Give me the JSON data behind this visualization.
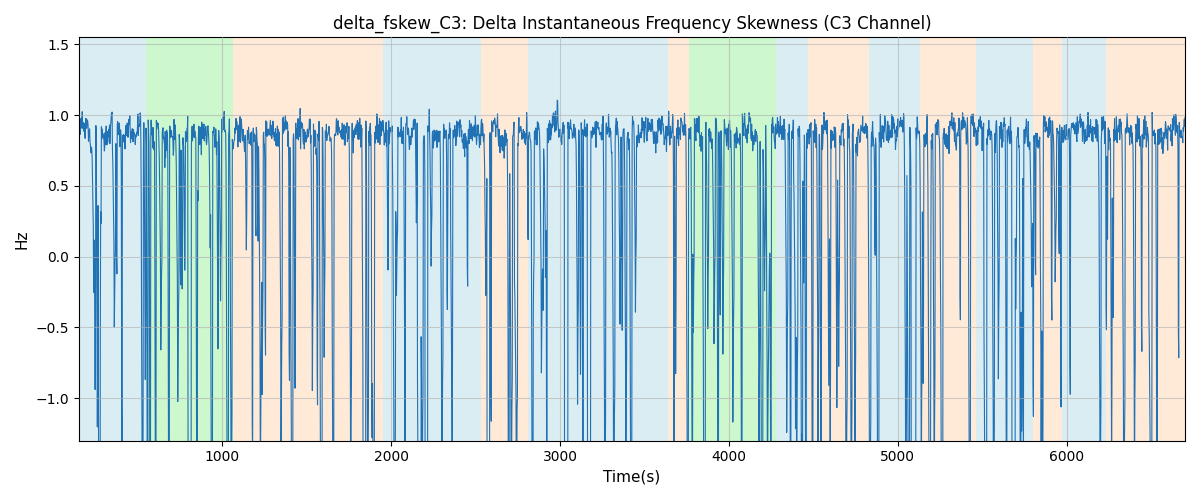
{
  "title": "delta_fskew_C3: Delta Instantaneous Frequency Skewness (C3 Channel)",
  "xlabel": "Time(s)",
  "ylabel": "Hz",
  "xlim": [
    150,
    6700
  ],
  "ylim": [
    -1.3,
    1.55
  ],
  "yticks": [
    -1.0,
    -0.5,
    0.0,
    0.5,
    1.0,
    1.5
  ],
  "xticks": [
    1000,
    2000,
    3000,
    4000,
    5000,
    6000
  ],
  "line_color": "#2171b5",
  "line_width": 0.8,
  "bg_segments": [
    {
      "xstart": 150,
      "xend": 550,
      "color": "#add8e6",
      "alpha": 0.45
    },
    {
      "xstart": 550,
      "xend": 1060,
      "color": "#90ee90",
      "alpha": 0.45
    },
    {
      "xstart": 1060,
      "xend": 1950,
      "color": "#ffdab9",
      "alpha": 0.55
    },
    {
      "xstart": 1950,
      "xend": 2530,
      "color": "#add8e6",
      "alpha": 0.45
    },
    {
      "xstart": 2530,
      "xend": 2810,
      "color": "#ffdab9",
      "alpha": 0.55
    },
    {
      "xstart": 2810,
      "xend": 3640,
      "color": "#add8e6",
      "alpha": 0.45
    },
    {
      "xstart": 3640,
      "xend": 3760,
      "color": "#ffdab9",
      "alpha": 0.55
    },
    {
      "xstart": 3760,
      "xend": 4280,
      "color": "#90ee90",
      "alpha": 0.45
    },
    {
      "xstart": 4280,
      "xend": 4470,
      "color": "#add8e6",
      "alpha": 0.45
    },
    {
      "xstart": 4470,
      "xend": 4830,
      "color": "#ffdab9",
      "alpha": 0.55
    },
    {
      "xstart": 4830,
      "xend": 5130,
      "color": "#add8e6",
      "alpha": 0.45
    },
    {
      "xstart": 5130,
      "xend": 5460,
      "color": "#ffdab9",
      "alpha": 0.55
    },
    {
      "xstart": 5460,
      "xend": 5800,
      "color": "#add8e6",
      "alpha": 0.45
    },
    {
      "xstart": 5800,
      "xend": 5970,
      "color": "#ffdab9",
      "alpha": 0.55
    },
    {
      "xstart": 5970,
      "xend": 6230,
      "color": "#add8e6",
      "alpha": 0.45
    },
    {
      "xstart": 6230,
      "xend": 6700,
      "color": "#ffdab9",
      "alpha": 0.55
    }
  ],
  "grid_color": "#b0b0b0",
  "grid_alpha": 0.6,
  "figsize": [
    12,
    5
  ],
  "dpi": 100,
  "seed": 42
}
